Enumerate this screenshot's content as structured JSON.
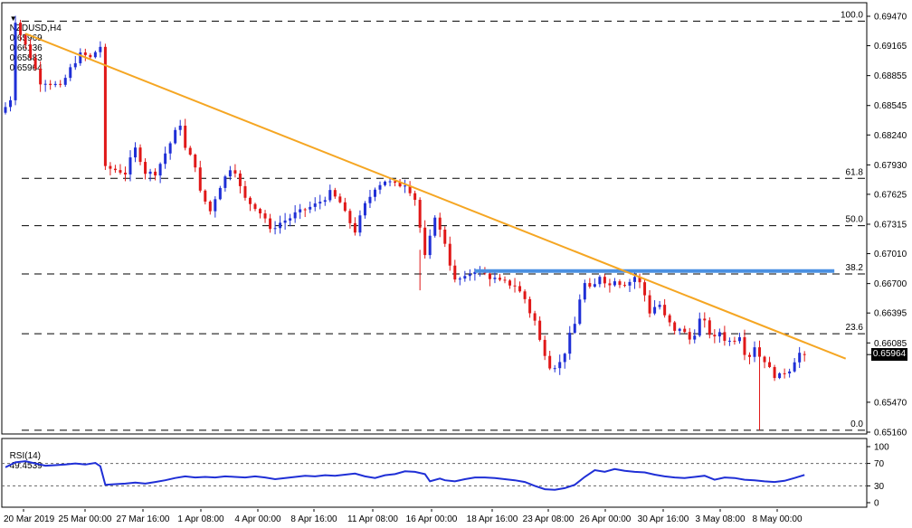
{
  "header": {
    "symbol": "NZDUSD,H4",
    "open": "0.65969",
    "high": "0.66136",
    "low": "0.65883",
    "close": "0.65964"
  },
  "current_price": "0.65964",
  "rsi_panel": {
    "label": "RSI(14)",
    "value": "49.4539"
  },
  "chart_data": [
    {
      "type": "candlestick",
      "title": "NZDUSD,H4",
      "ylim": [
        0.6512,
        0.695
      ],
      "y_ticks": [
        "0.69470",
        "0.69165",
        "0.68855",
        "0.68545",
        "0.68240",
        "0.67930",
        "0.67625",
        "0.67315",
        "0.67010",
        "0.66700",
        "0.66395",
        "0.66085",
        "0.65470",
        "0.65160"
      ],
      "x_tick_labels": [
        "20 Mar 2019",
        "25 Mar 00:00",
        "27 Mar 16:00",
        "1 Apr 08:00",
        "4 Apr 00:00",
        "8 Apr 16:00",
        "11 Apr 08:00",
        "16 Apr 00:00",
        "18 Apr 16:00",
        "23 Apr 08:00",
        "26 Apr 00:00",
        "30 Apr 16:00",
        "3 May 08:00",
        "8 May 00:00"
      ],
      "fib_levels": [
        {
          "label": "100.0",
          "value": 0.6942
        },
        {
          "label": "61.8",
          "value": 0.6779
        },
        {
          "label": "50.0",
          "value": 0.673
        },
        {
          "label": "38.2",
          "value": 0.668
        },
        {
          "label": "23.6",
          "value": 0.6618
        },
        {
          "label": "0.0",
          "value": 0.6518
        }
      ],
      "trendline": {
        "color": "#f5a623",
        "start": {
          "bar": 4,
          "value": 0.6929
        },
        "end": {
          "bar": 161,
          "value": 0.6607
        }
      },
      "resistance": {
        "color": "#4a90e2",
        "value": 0.6683,
        "start_bar": 94,
        "end_bar": 158
      },
      "bull_color": "#1f2fd6",
      "bear_color": "#e01818",
      "grid": false,
      "close_path": [
        [
          0,
          0.6853
        ],
        [
          1,
          0.6862
        ],
        [
          2,
          0.6942
        ],
        [
          3,
          0.6928
        ],
        [
          5,
          0.6905
        ],
        [
          7,
          0.688
        ],
        [
          9,
          0.6877
        ],
        [
          11,
          0.6874
        ],
        [
          13,
          0.6892
        ],
        [
          15,
          0.6908
        ],
        [
          17,
          0.6904
        ],
        [
          19,
          0.6916
        ],
        [
          20,
          0.679
        ],
        [
          22,
          0.6788
        ],
        [
          24,
          0.6784
        ],
        [
          26,
          0.681
        ],
        [
          28,
          0.6786
        ],
        [
          30,
          0.6784
        ],
        [
          32,
          0.6805
        ],
        [
          34,
          0.6826
        ],
        [
          35,
          0.6835
        ],
        [
          36,
          0.681
        ],
        [
          38,
          0.6792
        ],
        [
          39,
          0.6765
        ],
        [
          41,
          0.6745
        ],
        [
          43,
          0.6772
        ],
        [
          45,
          0.6789
        ],
        [
          46,
          0.6788
        ],
        [
          47,
          0.677
        ],
        [
          48,
          0.6758
        ],
        [
          50,
          0.6749
        ],
        [
          52,
          0.6738
        ],
        [
          53,
          0.6725
        ],
        [
          55,
          0.6733
        ],
        [
          57,
          0.6738
        ],
        [
          59,
          0.6745
        ],
        [
          61,
          0.6749
        ],
        [
          63,
          0.6755
        ],
        [
          65,
          0.6765
        ],
        [
          67,
          0.6754
        ],
        [
          69,
          0.6733
        ],
        [
          70,
          0.6725
        ],
        [
          71,
          0.6739
        ],
        [
          72,
          0.6752
        ],
        [
          74,
          0.6769
        ],
        [
          76,
          0.6777
        ],
        [
          78,
          0.6773
        ],
        [
          80,
          0.6773
        ],
        [
          82,
          0.6758
        ],
        [
          83,
          0.6728
        ],
        [
          84,
          0.6698
        ],
        [
          85,
          0.6716
        ],
        [
          86,
          0.674
        ],
        [
          87,
          0.6725
        ],
        [
          88,
          0.6713
        ],
        [
          89,
          0.669
        ],
        [
          90,
          0.6673
        ],
        [
          92,
          0.6676
        ],
        [
          94,
          0.6685
        ],
        [
          96,
          0.668
        ],
        [
          98,
          0.6675
        ],
        [
          100,
          0.667
        ],
        [
          102,
          0.6668
        ],
        [
          104,
          0.6654
        ],
        [
          105,
          0.664
        ],
        [
          106,
          0.6631
        ],
        [
          107,
          0.6611
        ],
        [
          108,
          0.6597
        ],
        [
          109,
          0.6586
        ],
        [
          110,
          0.6584
        ],
        [
          111,
          0.6588
        ],
        [
          112,
          0.66
        ],
        [
          113,
          0.6617
        ],
        [
          114,
          0.6628
        ],
        [
          115,
          0.6655
        ],
        [
          116,
          0.667
        ],
        [
          117,
          0.6665
        ],
        [
          118,
          0.6668
        ],
        [
          119,
          0.6678
        ],
        [
          120,
          0.6672
        ],
        [
          121,
          0.6668
        ],
        [
          122,
          0.6674
        ],
        [
          123,
          0.667
        ],
        [
          125,
          0.6672
        ],
        [
          126,
          0.6677
        ],
        [
          127,
          0.667
        ],
        [
          128,
          0.6658
        ],
        [
          129,
          0.664
        ],
        [
          130,
          0.6646
        ],
        [
          131,
          0.6648
        ],
        [
          132,
          0.6636
        ],
        [
          133,
          0.6628
        ],
        [
          134,
          0.662
        ],
        [
          135,
          0.6624
        ],
        [
          136,
          0.6618
        ],
        [
          137,
          0.6612
        ],
        [
          138,
          0.6618
        ],
        [
          139,
          0.6632
        ],
        [
          140,
          0.663
        ],
        [
          141,
          0.6618
        ],
        [
          142,
          0.6612
        ],
        [
          143,
          0.662
        ],
        [
          144,
          0.6612
        ],
        [
          145,
          0.661
        ],
        [
          146,
          0.6612
        ],
        [
          147,
          0.6616
        ],
        [
          148,
          0.66
        ],
        [
          149,
          0.6595
        ],
        [
          150,
          0.6605
        ],
        [
          151,
          0.6595
        ],
        [
          152,
          0.659
        ],
        [
          153,
          0.6582
        ],
        [
          154,
          0.6576
        ],
        [
          155,
          0.6575
        ],
        [
          156,
          0.6578
        ],
        [
          157,
          0.6582
        ],
        [
          158,
          0.659
        ],
        [
          159,
          0.6598
        ],
        [
          160,
          0.65964
        ]
      ]
    },
    {
      "type": "line",
      "title": "RSI(14) 49.4539",
      "series": [
        {
          "name": "RSI(14)",
          "color": "#1f2fd6"
        }
      ],
      "ylim": [
        0,
        100
      ],
      "levels": [
        "70",
        "30"
      ],
      "y_ticks": [
        "100",
        "70",
        "30",
        "0"
      ],
      "values_path": [
        [
          0,
          63
        ],
        [
          2,
          72
        ],
        [
          4,
          74
        ],
        [
          6,
          70
        ],
        [
          8,
          66
        ],
        [
          10,
          67
        ],
        [
          12,
          68
        ],
        [
          14,
          70
        ],
        [
          16,
          68
        ],
        [
          18,
          71
        ],
        [
          19,
          65
        ],
        [
          20,
          32
        ],
        [
          22,
          33
        ],
        [
          24,
          34
        ],
        [
          26,
          36
        ],
        [
          28,
          34
        ],
        [
          30,
          37
        ],
        [
          32,
          40
        ],
        [
          34,
          44
        ],
        [
          36,
          47
        ],
        [
          38,
          45
        ],
        [
          40,
          46
        ],
        [
          42,
          45
        ],
        [
          44,
          47
        ],
        [
          46,
          46
        ],
        [
          48,
          45
        ],
        [
          50,
          47
        ],
        [
          52,
          45
        ],
        [
          54,
          42
        ],
        [
          56,
          44
        ],
        [
          58,
          46
        ],
        [
          60,
          48
        ],
        [
          62,
          47
        ],
        [
          64,
          49
        ],
        [
          66,
          48
        ],
        [
          68,
          50
        ],
        [
          70,
          52
        ],
        [
          72,
          47
        ],
        [
          74,
          44
        ],
        [
          76,
          49
        ],
        [
          78,
          51
        ],
        [
          80,
          56
        ],
        [
          82,
          55
        ],
        [
          84,
          51
        ],
        [
          85,
          38
        ],
        [
          87,
          43
        ],
        [
          88,
          40
        ],
        [
          90,
          38
        ],
        [
          92,
          42
        ],
        [
          94,
          45
        ],
        [
          96,
          45
        ],
        [
          98,
          44
        ],
        [
          100,
          42
        ],
        [
          102,
          40
        ],
        [
          104,
          37
        ],
        [
          106,
          30
        ],
        [
          108,
          24
        ],
        [
          110,
          23
        ],
        [
          112,
          26
        ],
        [
          114,
          32
        ],
        [
          116,
          46
        ],
        [
          118,
          58
        ],
        [
          120,
          55
        ],
        [
          122,
          60
        ],
        [
          124,
          57
        ],
        [
          126,
          55
        ],
        [
          128,
          54
        ],
        [
          130,
          50
        ],
        [
          132,
          47
        ],
        [
          134,
          45
        ],
        [
          136,
          44
        ],
        [
          138,
          46
        ],
        [
          140,
          48
        ],
        [
          142,
          41
        ],
        [
          144,
          45
        ],
        [
          146,
          44
        ],
        [
          148,
          41
        ],
        [
          150,
          40
        ],
        [
          152,
          38
        ],
        [
          154,
          37
        ],
        [
          156,
          39
        ],
        [
          158,
          44
        ],
        [
          160,
          49.4539
        ]
      ]
    }
  ]
}
